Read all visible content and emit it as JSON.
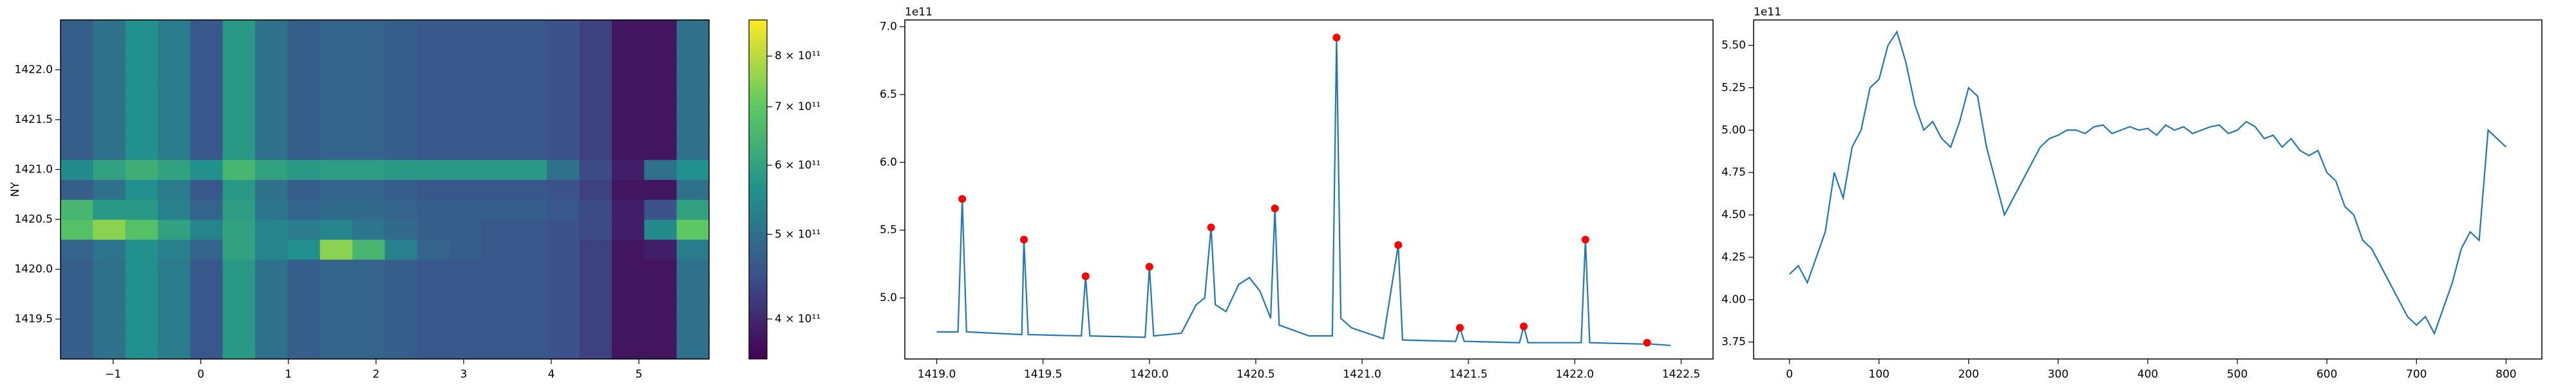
{
  "chart_data": [
    {
      "type": "heatmap",
      "ylabel": "NY",
      "colormap": "viridis",
      "x_edges": [
        -1.6,
        -1.23,
        -0.86,
        -0.49,
        -0.12,
        0.25,
        0.62,
        0.99,
        1.36,
        1.73,
        2.1,
        2.47,
        2.84,
        3.21,
        3.58,
        3.95,
        4.32,
        4.69,
        5.06,
        5.43,
        5.8
      ],
      "y_edges": [
        1419.1,
        1419.3,
        1419.5,
        1419.7,
        1419.9,
        1420.1,
        1420.3,
        1420.5,
        1420.7,
        1420.9,
        1421.1,
        1421.3,
        1421.5,
        1421.7,
        1421.9,
        1422.1,
        1422.3,
        1422.5
      ],
      "z": [
        [
          470000000000.0,
          500000000000.0,
          560000000000.0,
          520000000000.0,
          460000000000.0,
          580000000000.0,
          500000000000.0,
          470000000000.0,
          480000000000.0,
          480000000000.0,
          470000000000.0,
          460000000000.0,
          460000000000.0,
          460000000000.0,
          460000000000.0,
          450000000000.0,
          430000000000.0,
          380000000000.0,
          380000000000.0,
          500000000000.0
        ],
        [
          470000000000.0,
          500000000000.0,
          560000000000.0,
          520000000000.0,
          460000000000.0,
          580000000000.0,
          500000000000.0,
          470000000000.0,
          480000000000.0,
          480000000000.0,
          470000000000.0,
          460000000000.0,
          460000000000.0,
          460000000000.0,
          460000000000.0,
          450000000000.0,
          430000000000.0,
          380000000000.0,
          380000000000.0,
          500000000000.0
        ],
        [
          470000000000.0,
          500000000000.0,
          560000000000.0,
          520000000000.0,
          460000000000.0,
          580000000000.0,
          500000000000.0,
          470000000000.0,
          480000000000.0,
          480000000000.0,
          470000000000.0,
          460000000000.0,
          460000000000.0,
          460000000000.0,
          460000000000.0,
          450000000000.0,
          430000000000.0,
          380000000000.0,
          380000000000.0,
          500000000000.0
        ],
        [
          470000000000.0,
          500000000000.0,
          560000000000.0,
          520000000000.0,
          460000000000.0,
          580000000000.0,
          500000000000.0,
          470000000000.0,
          480000000000.0,
          480000000000.0,
          470000000000.0,
          460000000000.0,
          460000000000.0,
          460000000000.0,
          460000000000.0,
          450000000000.0,
          430000000000.0,
          380000000000.0,
          380000000000.0,
          500000000000.0
        ],
        [
          470000000000.0,
          500000000000.0,
          560000000000.0,
          520000000000.0,
          460000000000.0,
          580000000000.0,
          500000000000.0,
          470000000000.0,
          480000000000.0,
          480000000000.0,
          470000000000.0,
          460000000000.0,
          460000000000.0,
          460000000000.0,
          460000000000.0,
          450000000000.0,
          430000000000.0,
          380000000000.0,
          380000000000.0,
          500000000000.0
        ],
        [
          480000000000.0,
          510000000000.0,
          560000000000.0,
          530000000000.0,
          480000000000.0,
          600000000000.0,
          540000000000.0,
          560000000000.0,
          750000000000.0,
          650000000000.0,
          530000000000.0,
          480000000000.0,
          470000000000.0,
          460000000000.0,
          460000000000.0,
          450000000000.0,
          430000000000.0,
          380000000000.0,
          390000000000.0,
          520000000000.0
        ],
        [
          680000000000.0,
          750000000000.0,
          680000000000.0,
          600000000000.0,
          540000000000.0,
          600000000000.0,
          540000000000.0,
          520000000000.0,
          540000000000.0,
          510000000000.0,
          490000000000.0,
          470000000000.0,
          470000000000.0,
          460000000000.0,
          460000000000.0,
          450000000000.0,
          440000000000.0,
          390000000000.0,
          550000000000.0,
          700000000000.0
        ],
        [
          650000000000.0,
          580000000000.0,
          580000000000.0,
          530000000000.0,
          480000000000.0,
          590000000000.0,
          510000000000.0,
          480000000000.0,
          490000000000.0,
          490000000000.0,
          480000000000.0,
          470000000000.0,
          470000000000.0,
          470000000000.0,
          470000000000.0,
          460000000000.0,
          440000000000.0,
          390000000000.0,
          450000000000.0,
          600000000000.0
        ],
        [
          470000000000.0,
          500000000000.0,
          560000000000.0,
          520000000000.0,
          460000000000.0,
          580000000000.0,
          500000000000.0,
          470000000000.0,
          480000000000.0,
          480000000000.0,
          470000000000.0,
          460000000000.0,
          460000000000.0,
          460000000000.0,
          460000000000.0,
          450000000000.0,
          430000000000.0,
          380000000000.0,
          380000000000.0,
          500000000000.0
        ],
        [
          550000000000.0,
          600000000000.0,
          630000000000.0,
          600000000000.0,
          560000000000.0,
          650000000000.0,
          600000000000.0,
          580000000000.0,
          590000000000.0,
          590000000000.0,
          580000000000.0,
          580000000000.0,
          580000000000.0,
          580000000000.0,
          580000000000.0,
          500000000000.0,
          440000000000.0,
          390000000000.0,
          500000000000.0,
          560000000000.0
        ],
        [
          470000000000.0,
          500000000000.0,
          560000000000.0,
          520000000000.0,
          460000000000.0,
          580000000000.0,
          500000000000.0,
          470000000000.0,
          480000000000.0,
          480000000000.0,
          470000000000.0,
          460000000000.0,
          460000000000.0,
          460000000000.0,
          460000000000.0,
          450000000000.0,
          430000000000.0,
          380000000000.0,
          380000000000.0,
          500000000000.0
        ],
        [
          470000000000.0,
          500000000000.0,
          560000000000.0,
          520000000000.0,
          460000000000.0,
          580000000000.0,
          500000000000.0,
          470000000000.0,
          480000000000.0,
          480000000000.0,
          470000000000.0,
          460000000000.0,
          460000000000.0,
          460000000000.0,
          460000000000.0,
          450000000000.0,
          430000000000.0,
          380000000000.0,
          380000000000.0,
          500000000000.0
        ],
        [
          470000000000.0,
          500000000000.0,
          560000000000.0,
          520000000000.0,
          460000000000.0,
          580000000000.0,
          500000000000.0,
          470000000000.0,
          480000000000.0,
          480000000000.0,
          470000000000.0,
          460000000000.0,
          460000000000.0,
          460000000000.0,
          460000000000.0,
          450000000000.0,
          430000000000.0,
          380000000000.0,
          380000000000.0,
          500000000000.0
        ],
        [
          470000000000.0,
          500000000000.0,
          560000000000.0,
          520000000000.0,
          460000000000.0,
          580000000000.0,
          500000000000.0,
          470000000000.0,
          480000000000.0,
          480000000000.0,
          470000000000.0,
          460000000000.0,
          460000000000.0,
          460000000000.0,
          460000000000.0,
          450000000000.0,
          430000000000.0,
          380000000000.0,
          380000000000.0,
          500000000000.0
        ],
        [
          470000000000.0,
          500000000000.0,
          560000000000.0,
          520000000000.0,
          460000000000.0,
          580000000000.0,
          500000000000.0,
          470000000000.0,
          480000000000.0,
          480000000000.0,
          470000000000.0,
          460000000000.0,
          460000000000.0,
          460000000000.0,
          460000000000.0,
          450000000000.0,
          430000000000.0,
          380000000000.0,
          380000000000.0,
          500000000000.0
        ],
        [
          470000000000.0,
          500000000000.0,
          560000000000.0,
          520000000000.0,
          460000000000.0,
          580000000000.0,
          500000000000.0,
          470000000000.0,
          480000000000.0,
          480000000000.0,
          470000000000.0,
          460000000000.0,
          460000000000.0,
          460000000000.0,
          460000000000.0,
          450000000000.0,
          430000000000.0,
          380000000000.0,
          380000000000.0,
          500000000000.0
        ],
        [
          470000000000.0,
          500000000000.0,
          560000000000.0,
          520000000000.0,
          460000000000.0,
          580000000000.0,
          500000000000.0,
          470000000000.0,
          480000000000.0,
          480000000000.0,
          470000000000.0,
          460000000000.0,
          460000000000.0,
          460000000000.0,
          460000000000.0,
          450000000000.0,
          430000000000.0,
          380000000000.0,
          380000000000.0,
          500000000000.0
        ]
      ],
      "xlim": [
        -1.6,
        5.8
      ],
      "ylim": [
        1419.1,
        1422.5
      ],
      "xticks": [
        {
          "value": -1,
          "label": "−1"
        },
        0,
        1,
        2,
        3,
        4,
        5
      ],
      "yticks": [
        {
          "value": 1419.5,
          "label": "1419.5"
        },
        {
          "value": 1420,
          "label": "1420.0"
        },
        {
          "value": 1420.5,
          "label": "1420.5"
        },
        {
          "value": 1421,
          "label": "1421.0"
        },
        {
          "value": 1421.5,
          "label": "1421.5"
        },
        {
          "value": 1422,
          "label": "1422.0"
        }
      ],
      "colorbar": {
        "log": true,
        "lim": [
          360000000000.0,
          880000000000.0
        ],
        "ticks": [
          {
            "value": 400000000000.0,
            "label": "4 × 10¹¹"
          },
          {
            "value": 500000000000.0,
            "label": "5 × 10¹¹"
          },
          {
            "value": 600000000000.0,
            "label": "6 × 10¹¹"
          },
          {
            "value": 700000000000.0,
            "label": "7 × 10¹¹"
          },
          {
            "value": 800000000000.0,
            "label": "8 × 10¹¹"
          }
        ]
      }
    },
    {
      "type": "line",
      "offset_label": "1e11",
      "series": [
        {
          "style": "line",
          "color": "#1f77b4",
          "x": [
            1419.0,
            1419.1,
            1419.12,
            1419.14,
            1419.4,
            1419.41,
            1419.43,
            1419.68,
            1419.7,
            1419.72,
            1419.98,
            1420.0,
            1420.02,
            1420.15,
            1420.22,
            1420.26,
            1420.29,
            1420.31,
            1420.36,
            1420.42,
            1420.47,
            1420.52,
            1420.57,
            1420.59,
            1420.61,
            1420.75,
            1420.86,
            1420.88,
            1420.9,
            1420.95,
            1421.1,
            1421.17,
            1421.19,
            1421.44,
            1421.46,
            1421.48,
            1421.74,
            1421.76,
            1421.78,
            1422.03,
            1422.05,
            1422.07,
            1422.32,
            1422.34,
            1422.36,
            1422.45
          ],
          "values": [
            4.75,
            4.75,
            5.73,
            4.75,
            4.73,
            5.43,
            4.73,
            4.72,
            5.16,
            4.72,
            4.71,
            5.23,
            4.72,
            4.74,
            4.95,
            5.0,
            5.52,
            4.95,
            4.9,
            5.1,
            5.15,
            5.05,
            4.85,
            5.66,
            4.8,
            4.72,
            4.72,
            6.92,
            4.85,
            4.78,
            4.7,
            5.39,
            4.69,
            4.68,
            4.78,
            4.68,
            4.67,
            4.79,
            4.67,
            4.67,
            5.43,
            4.67,
            4.66,
            4.67,
            4.66,
            4.65
          ]
        },
        {
          "style": "markers",
          "color": "#ff0000",
          "x": [
            1419.12,
            1419.41,
            1419.7,
            1420.0,
            1420.29,
            1420.59,
            1420.88,
            1421.17,
            1421.46,
            1421.76,
            1422.05,
            1422.34
          ],
          "values": [
            5.73,
            5.43,
            5.16,
            5.23,
            5.52,
            5.66,
            6.92,
            5.39,
            4.78,
            4.79,
            5.43,
            4.67
          ]
        }
      ],
      "xlim": [
        1418.85,
        1422.65
      ],
      "ylim": [
        4.55,
        7.05
      ],
      "xticks": [
        {
          "value": 1419,
          "label": "1419.0"
        },
        {
          "value": 1419.5,
          "label": "1419.5"
        },
        {
          "value": 1420,
          "label": "1420.0"
        },
        {
          "value": 1420.5,
          "label": "1420.5"
        },
        {
          "value": 1421,
          "label": "1421.0"
        },
        {
          "value": 1421.5,
          "label": "1421.5"
        },
        {
          "value": 1422,
          "label": "1422.0"
        },
        {
          "value": 1422.5,
          "label": "1422.5"
        }
      ],
      "yticks": [
        {
          "value": 5,
          "label": "5.0"
        },
        5.5,
        {
          "value": 6,
          "label": "6.0"
        },
        6.5,
        {
          "value": 7,
          "label": "7.0"
        }
      ]
    },
    {
      "type": "line",
      "offset_label": "1e11",
      "series": [
        {
          "style": "line",
          "color": "#1f77b4",
          "x": [
            0,
            10,
            20,
            30,
            40,
            50,
            60,
            70,
            80,
            90,
            100,
            110,
            120,
            130,
            140,
            150,
            160,
            170,
            180,
            190,
            200,
            210,
            220,
            230,
            240,
            250,
            260,
            270,
            280,
            290,
            300,
            310,
            320,
            330,
            340,
            350,
            360,
            370,
            380,
            390,
            400,
            410,
            420,
            430,
            440,
            450,
            460,
            470,
            480,
            490,
            500,
            510,
            520,
            530,
            540,
            550,
            560,
            570,
            580,
            590,
            600,
            610,
            620,
            630,
            640,
            650,
            660,
            670,
            680,
            690,
            700,
            710,
            720,
            730,
            740,
            750,
            760,
            770,
            780,
            790,
            800
          ],
          "values": [
            4.15,
            4.2,
            4.1,
            4.25,
            4.4,
            4.75,
            4.6,
            4.9,
            5.0,
            5.25,
            5.3,
            5.5,
            5.58,
            5.4,
            5.15,
            5.0,
            5.05,
            4.95,
            4.9,
            5.05,
            5.25,
            5.2,
            4.9,
            4.7,
            4.5,
            4.6,
            4.7,
            4.8,
            4.9,
            4.95,
            4.97,
            5.0,
            5.0,
            4.98,
            5.02,
            5.03,
            4.98,
            5.0,
            5.02,
            5.0,
            5.01,
            4.97,
            5.03,
            5.0,
            5.02,
            4.98,
            5.0,
            5.02,
            5.03,
            4.98,
            5.0,
            5.05,
            5.02,
            4.95,
            4.97,
            4.9,
            4.95,
            4.88,
            4.85,
            4.88,
            4.75,
            4.7,
            4.55,
            4.5,
            4.35,
            4.3,
            4.2,
            4.1,
            4.0,
            3.9,
            3.85,
            3.9,
            3.8,
            3.95,
            4.1,
            4.3,
            4.4,
            4.35,
            5.0,
            4.95,
            4.9
          ]
        }
      ],
      "xlim": [
        -40,
        840
      ],
      "ylim": [
        3.65,
        5.65
      ],
      "xticks": [
        0,
        100,
        200,
        300,
        400,
        500,
        600,
        700,
        800
      ],
      "yticks": [
        3.75,
        {
          "value": 4,
          "label": "4.00"
        },
        4.25,
        {
          "value": 4.5,
          "label": "4.50"
        },
        4.75,
        {
          "value": 5,
          "label": "5.00"
        },
        5.25,
        {
          "value": 5.5,
          "label": "5.50"
        }
      ]
    }
  ]
}
